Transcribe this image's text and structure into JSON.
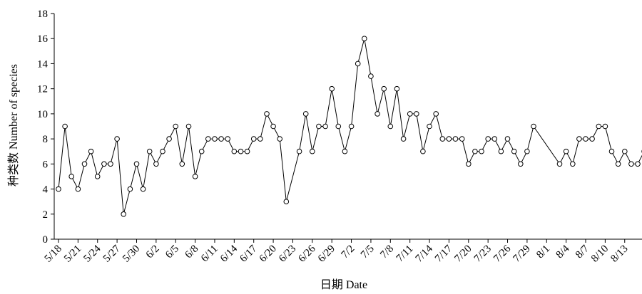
{
  "chart_data": {
    "type": "line",
    "xlabel": "日期 Date",
    "ylabel": "种类数 Number of species",
    "ylim": [
      0,
      18
    ],
    "yticks": [
      0,
      2,
      4,
      6,
      8,
      10,
      12,
      14,
      16,
      18
    ],
    "xlim": [
      "5/18",
      "8/15"
    ],
    "xticks": [
      "5/18",
      "5/21",
      "5/24",
      "5/27",
      "5/30",
      "6/2",
      "6/5",
      "6/8",
      "6/11",
      "6/14",
      "6/17",
      "6/20",
      "6/23",
      "6/26",
      "6/29",
      "7/2",
      "7/5",
      "7/8",
      "7/11",
      "7/14",
      "7/17",
      "7/20",
      "7/23",
      "7/26",
      "7/29",
      "8/1",
      "8/4",
      "8/7",
      "8/10",
      "8/13"
    ],
    "grid": false,
    "marker": "open-circle",
    "series": [
      {
        "points": [
          {
            "x": "5/18",
            "y": 4
          },
          {
            "x": "5/19",
            "y": 9
          },
          {
            "x": "5/20",
            "y": 5
          },
          {
            "x": "5/21",
            "y": 4
          },
          {
            "x": "5/22",
            "y": 6
          },
          {
            "x": "5/23",
            "y": 7
          },
          {
            "x": "5/24",
            "y": 5
          },
          {
            "x": "5/25",
            "y": 6
          },
          {
            "x": "5/26",
            "y": 6
          },
          {
            "x": "5/27",
            "y": 8
          },
          {
            "x": "5/28",
            "y": 2
          },
          {
            "x": "5/29",
            "y": 4
          },
          {
            "x": "5/30",
            "y": 6
          },
          {
            "x": "5/31",
            "y": 4
          },
          {
            "x": "6/1",
            "y": 7
          },
          {
            "x": "6/2",
            "y": 6
          },
          {
            "x": "6/3",
            "y": 7
          },
          {
            "x": "6/4",
            "y": 8
          },
          {
            "x": "6/5",
            "y": 9
          },
          {
            "x": "6/6",
            "y": 6
          },
          {
            "x": "6/7",
            "y": 9
          },
          {
            "x": "6/8",
            "y": 5
          },
          {
            "x": "6/9",
            "y": 7
          },
          {
            "x": "6/10",
            "y": 8
          },
          {
            "x": "6/11",
            "y": 8
          },
          {
            "x": "6/12",
            "y": 8
          },
          {
            "x": "6/13",
            "y": 8
          },
          {
            "x": "6/14",
            "y": 7
          },
          {
            "x": "6/15",
            "y": 7
          },
          {
            "x": "6/16",
            "y": 7
          },
          {
            "x": "6/17",
            "y": 8
          },
          {
            "x": "6/18",
            "y": 8
          },
          {
            "x": "6/19",
            "y": 10
          },
          {
            "x": "6/20",
            "y": 9
          },
          {
            "x": "6/21",
            "y": 8
          },
          {
            "x": "6/22",
            "y": 3
          },
          {
            "x": "6/24",
            "y": 7
          },
          {
            "x": "6/25",
            "y": 10
          },
          {
            "x": "6/26",
            "y": 7
          },
          {
            "x": "6/27",
            "y": 9
          },
          {
            "x": "6/28",
            "y": 9
          },
          {
            "x": "6/29",
            "y": 12
          },
          {
            "x": "6/30",
            "y": 9
          },
          {
            "x": "7/1",
            "y": 7
          },
          {
            "x": "7/2",
            "y": 9
          },
          {
            "x": "7/3",
            "y": 14
          },
          {
            "x": "7/4",
            "y": 16
          },
          {
            "x": "7/5",
            "y": 13
          },
          {
            "x": "7/6",
            "y": 10
          },
          {
            "x": "7/7",
            "y": 12
          },
          {
            "x": "7/8",
            "y": 9
          },
          {
            "x": "7/9",
            "y": 12
          },
          {
            "x": "7/10",
            "y": 8
          },
          {
            "x": "7/11",
            "y": 10
          },
          {
            "x": "7/12",
            "y": 10
          },
          {
            "x": "7/13",
            "y": 7
          },
          {
            "x": "7/14",
            "y": 9
          },
          {
            "x": "7/15",
            "y": 10
          },
          {
            "x": "7/16",
            "y": 8
          },
          {
            "x": "7/17",
            "y": 8
          },
          {
            "x": "7/18",
            "y": 8
          },
          {
            "x": "7/19",
            "y": 8
          },
          {
            "x": "7/20",
            "y": 6
          },
          {
            "x": "7/21",
            "y": 7
          },
          {
            "x": "7/22",
            "y": 7
          },
          {
            "x": "7/23",
            "y": 8
          },
          {
            "x": "7/24",
            "y": 8
          },
          {
            "x": "7/25",
            "y": 7
          },
          {
            "x": "7/26",
            "y": 8
          },
          {
            "x": "7/27",
            "y": 7
          },
          {
            "x": "7/28",
            "y": 6
          },
          {
            "x": "7/29",
            "y": 7
          },
          {
            "x": "7/30",
            "y": 9
          },
          {
            "x": "8/3",
            "y": 6
          },
          {
            "x": "8/4",
            "y": 7
          },
          {
            "x": "8/5",
            "y": 6
          },
          {
            "x": "8/6",
            "y": 8
          },
          {
            "x": "8/7",
            "y": 8
          },
          {
            "x": "8/8",
            "y": 8
          },
          {
            "x": "8/9",
            "y": 9
          },
          {
            "x": "8/10",
            "y": 9
          },
          {
            "x": "8/11",
            "y": 7
          },
          {
            "x": "8/12",
            "y": 6
          },
          {
            "x": "8/13",
            "y": 7
          },
          {
            "x": "8/14",
            "y": 6
          },
          {
            "x": "8/15",
            "y": 6
          },
          {
            "x": "8/16",
            "y": 7
          }
        ]
      }
    ],
    "colors": {
      "line": "#000000",
      "marker_fill": "#ffffff",
      "axis": "#000000"
    }
  }
}
